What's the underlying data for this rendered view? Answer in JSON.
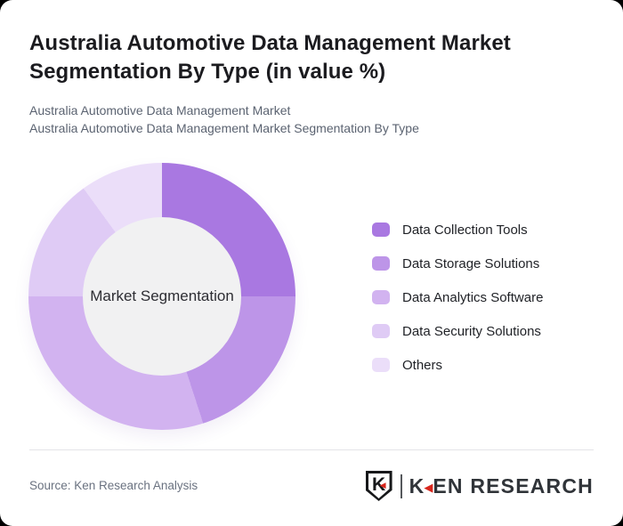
{
  "header": {
    "title_line1": "Australia Automotive Data Management Market",
    "title_line2": "Segmentation By Type (in value %)",
    "subtitle_line1": "Australia Automotive Data Management Market",
    "subtitle_line2": "Australia Automotive Data Management Market Segmentation By Type"
  },
  "chart_data": {
    "type": "pie",
    "subtype": "donut",
    "title": "Australia Automotive Data Management Market Segmentation By Type (in value %)",
    "center_label": "Market Segmentation",
    "categories": [
      "Data Collection Tools",
      "Data Storage Solutions",
      "Data Analytics Software",
      "Data Security Solutions",
      "Others"
    ],
    "values": [
      25,
      20,
      30,
      15,
      10
    ],
    "unit": "%",
    "colors": [
      "#a978e1",
      "#bd95e8",
      "#d2b3f0",
      "#dfcbf5",
      "#ebdef9"
    ],
    "hole_color": "#f1f1f2",
    "start_angle_deg": 0,
    "legend_position": "right"
  },
  "footer": {
    "source_text": "Source: Ken Research Analysis",
    "logo": {
      "emblem_letter": "K",
      "triangle_glyph": "◀",
      "word_k": "K",
      "word_rest": "EN RESEARCH",
      "accent_color": "#d8261d",
      "text_color": "#303439"
    }
  }
}
